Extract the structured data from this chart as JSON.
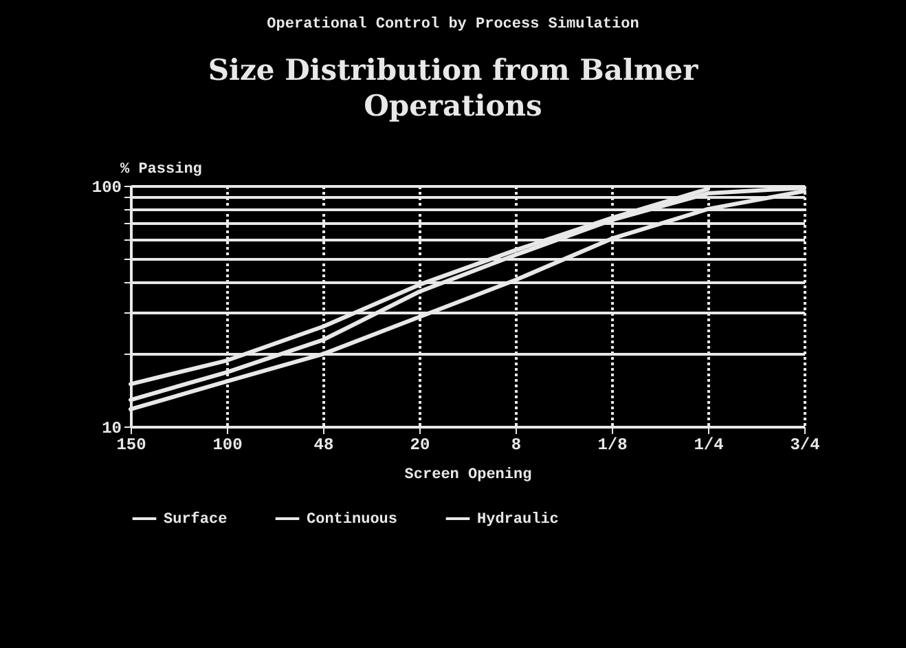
{
  "chart_data": {
    "type": "line",
    "title": "Size Distribution from Balmer Operations",
    "annotations": [
      "Operational Control by Process Simulation"
    ],
    "xlabel": "Screen Opening",
    "ylabel": "% Passing",
    "categories": [
      "150",
      "100",
      "48",
      "20",
      "8",
      "1/8",
      "1/4",
      "3/4"
    ],
    "series": [
      {
        "name": "Surface",
        "color": "#e8e8e8",
        "values": [
          15,
          18.8,
          26,
          38.8,
          54,
          73.5,
          97,
          null
        ]
      },
      {
        "name": "Continuous",
        "color": "#e8e8e8",
        "values": [
          12.9,
          16.8,
          22.9,
          36.3,
          51.6,
          72,
          93,
          98
        ]
      },
      {
        "name": "Hydraulic",
        "color": "#e8e8e8",
        "values": [
          11.8,
          15.4,
          20,
          28.5,
          40.6,
          60.3,
          80,
          95
        ]
      }
    ],
    "log": "y",
    "ylim": [
      10,
      100
    ],
    "yticks": [
      10,
      {
        "value": 20,
        "label": null
      },
      {
        "value": 30,
        "label": null
      },
      {
        "value": 40,
        "label": null
      },
      {
        "value": 50,
        "label": null
      },
      {
        "value": 60,
        "label": null
      },
      {
        "value": 70,
        "label": null
      },
      {
        "value": 80,
        "label": null
      },
      {
        "value": 90,
        "label": null
      },
      100
    ],
    "grid": true,
    "legend": "bottom",
    "marker": "none",
    "line_style": "solid"
  }
}
